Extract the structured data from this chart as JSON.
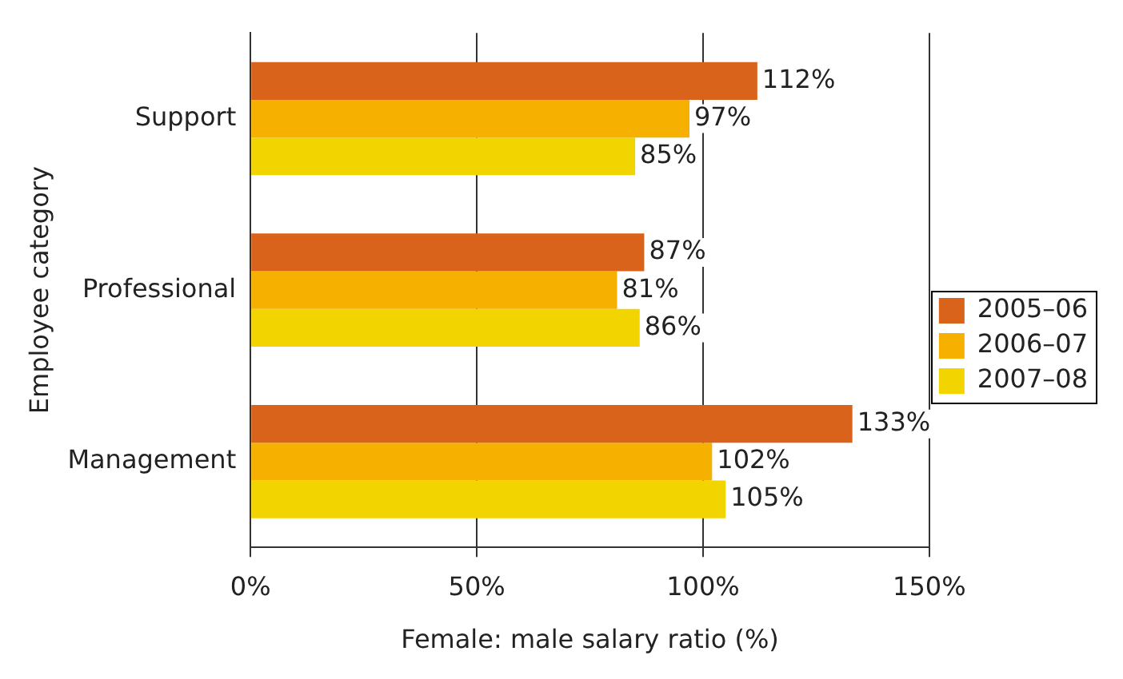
{
  "chart_data": {
    "type": "bar",
    "orientation": "horizontal",
    "xlabel": "Female: male salary ratio (%)",
    "ylabel": "Employee category",
    "categories": [
      "Support",
      "Professional",
      "Management"
    ],
    "series": [
      {
        "name": "2005–06",
        "color": "#d9631a",
        "values": [
          112,
          87,
          133
        ],
        "value_labels": [
          "112%",
          "87%",
          "133%"
        ]
      },
      {
        "name": "2006–07",
        "color": "#f5b000",
        "values": [
          97,
          81,
          102
        ],
        "value_labels": [
          "97%",
          "81%",
          "102%"
        ]
      },
      {
        "name": "2007–08",
        "color": "#f2d500",
        "values": [
          85,
          86,
          105
        ],
        "value_labels": [
          "85%",
          "86%",
          "105%"
        ]
      }
    ],
    "xlim": [
      0,
      150
    ],
    "xticks": [
      {
        "value": 0,
        "label": "0%"
      },
      {
        "value": 50,
        "label": "50%"
      },
      {
        "value": 100,
        "label": "100%"
      },
      {
        "value": 150,
        "label": "150%"
      }
    ],
    "grid": "x",
    "legend": "right"
  }
}
